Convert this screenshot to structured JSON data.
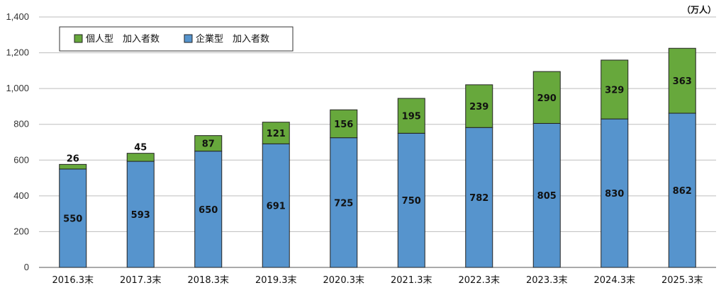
{
  "chart_data": {
    "type": "bar",
    "stacked": true,
    "unit": "（万人）",
    "categories": [
      "2016.3末",
      "2017.3末",
      "2018.3末",
      "2019.3末",
      "2020.3末",
      "2021.3末",
      "2022.3末",
      "2023.3末",
      "2024.3末",
      "2025.3末"
    ],
    "series": [
      {
        "name": "企業型　加入者数",
        "color": "#5694cd",
        "values": [
          550,
          593,
          650,
          691,
          725,
          750,
          782,
          805,
          830,
          862
        ]
      },
      {
        "name": "個人型　加入者数",
        "color": "#67a83c",
        "values": [
          26,
          45,
          87,
          121,
          156,
          195,
          239,
          290,
          329,
          363
        ]
      }
    ],
    "ylim": [
      0,
      1400
    ],
    "yticks": [
      "0",
      "200",
      "400",
      "600",
      "800",
      "1,000",
      "1,200",
      "1,400"
    ],
    "grid": true,
    "legend_position": "top-left",
    "legend_order": [
      "個人型　加入者数",
      "企業型　加入者数"
    ]
  }
}
